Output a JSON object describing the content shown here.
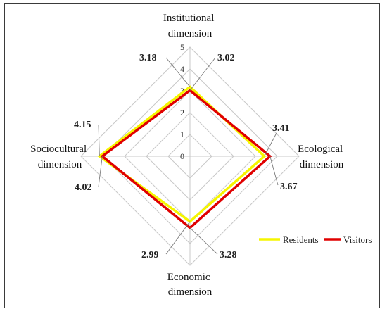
{
  "chart_data": {
    "type": "radar",
    "axes": [
      {
        "key": "institutional",
        "label_lines": [
          "Institutional",
          "dimension"
        ]
      },
      {
        "key": "ecological",
        "label_lines": [
          "Ecological",
          "dimension"
        ]
      },
      {
        "key": "economic",
        "label_lines": [
          "Economic",
          "dimension"
        ]
      },
      {
        "key": "sociocultural",
        "label_lines": [
          "Sociocultural",
          "dimension"
        ]
      }
    ],
    "rlim": [
      0,
      5
    ],
    "ticks": [
      "0",
      "1",
      "2",
      "3",
      "4",
      "5"
    ],
    "series": [
      {
        "name": "Residents",
        "color": "#f5f500",
        "values": [
          3.18,
          3.41,
          2.99,
          4.15
        ]
      },
      {
        "name": "Visitors",
        "color": "#e00000",
        "values": [
          3.02,
          3.67,
          3.28,
          4.02
        ]
      }
    ],
    "value_labels": {
      "institutional": [
        "3.18",
        "3.02"
      ],
      "ecological": [
        "3.41",
        "3.67"
      ],
      "economic": [
        "2.99",
        "3.28"
      ],
      "sociocultural": [
        "4.15",
        "4.02"
      ]
    },
    "grid": true,
    "legend_position": "bottom-right"
  }
}
